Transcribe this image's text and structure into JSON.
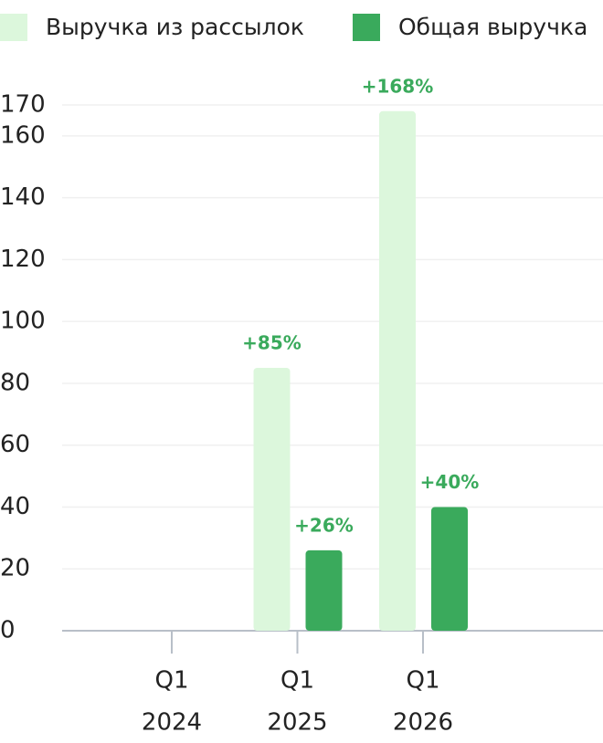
{
  "chart_data": {
    "type": "bar",
    "categories": [
      [
        "Q1",
        "2024"
      ],
      [
        "Q1",
        "2025"
      ],
      [
        "Q1",
        "2026"
      ]
    ],
    "series": [
      {
        "name": "Выручка из рассылок",
        "color": "#dcf7dc",
        "values": [
          0,
          85,
          168
        ],
        "value_labels": [
          null,
          "+85%",
          "+168%"
        ]
      },
      {
        "name": "Общая выручка",
        "color": "#3aaa5c",
        "values": [
          0,
          26,
          40
        ],
        "value_labels": [
          null,
          "+26%",
          "+40%"
        ]
      }
    ],
    "ylim": [
      0,
      170
    ],
    "yticks": [
      0,
      20,
      40,
      60,
      80,
      100,
      120,
      140,
      160,
      170
    ],
    "grid": true,
    "legend": "top",
    "value_label_color": "#3aaa5c"
  }
}
